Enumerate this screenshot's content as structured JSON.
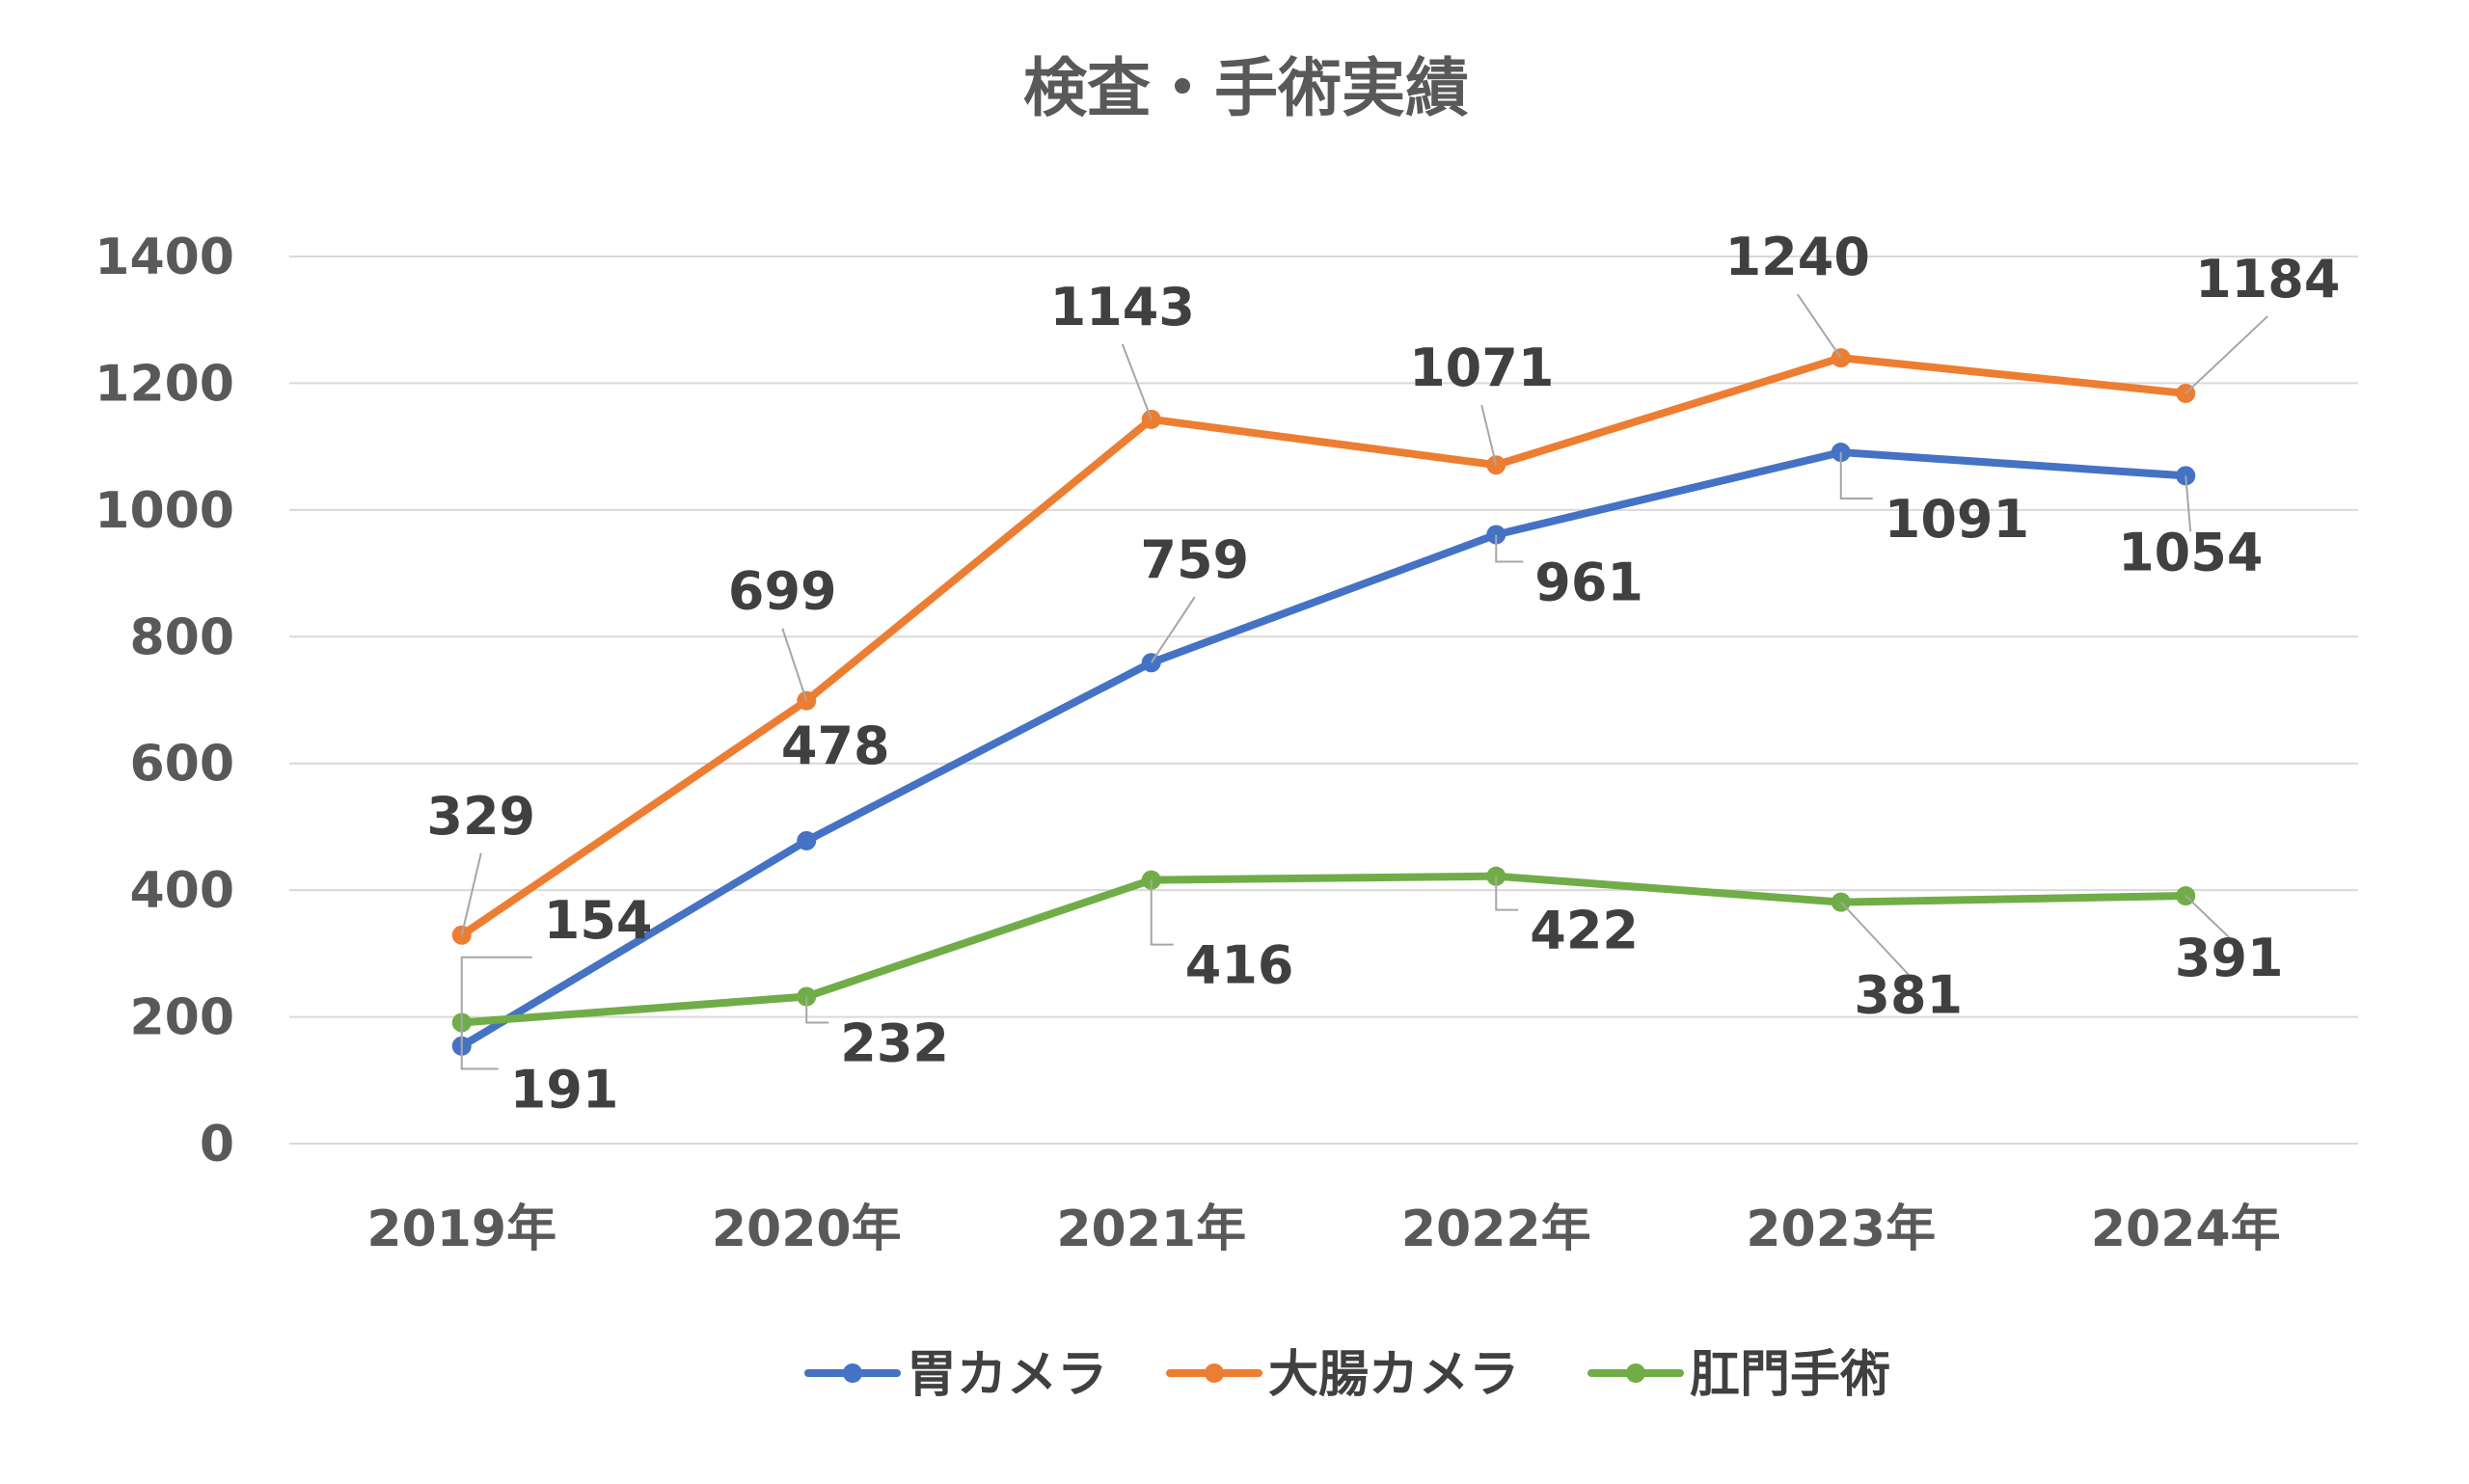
{
  "chart_data": {
    "type": "line",
    "title": "検査・手術実績",
    "xlabel": "",
    "ylabel": "",
    "categories": [
      "2019年",
      "2020年",
      "2021年",
      "2022年",
      "2023年",
      "2024年"
    ],
    "ylim": [
      0,
      1400
    ],
    "yticks": [
      0,
      200,
      400,
      600,
      800,
      1000,
      1200,
      1400
    ],
    "grid": true,
    "legend_position": "bottom",
    "series": [
      {
        "name": "胃カメラ",
        "color": "#4472C4",
        "values": [
          154,
          478,
          759,
          961,
          1091,
          1054
        ]
      },
      {
        "name": "大腸カメラ",
        "color": "#ED7D31",
        "values": [
          329,
          699,
          1143,
          1071,
          1240,
          1184
        ]
      },
      {
        "name": "肛門手術",
        "color": "#70AD47",
        "values": [
          191,
          232,
          416,
          422,
          381,
          391
        ]
      }
    ]
  }
}
